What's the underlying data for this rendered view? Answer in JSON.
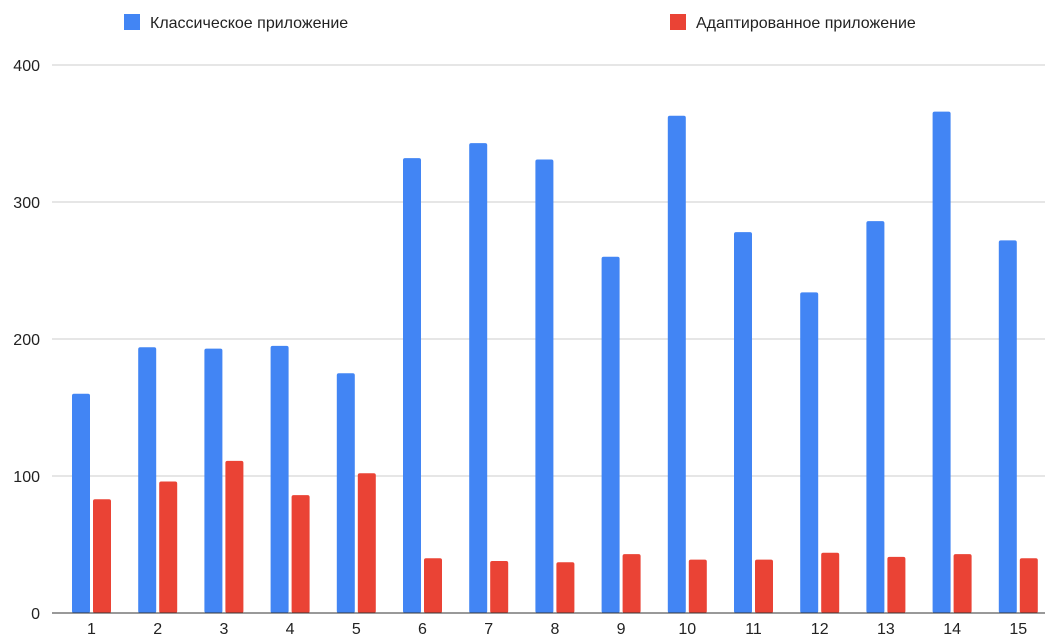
{
  "chart_data": {
    "type": "bar",
    "title": "",
    "xlabel": "",
    "ylabel": "",
    "categories": [
      "1",
      "2",
      "3",
      "4",
      "5",
      "6",
      "7",
      "8",
      "9",
      "10",
      "11",
      "12",
      "13",
      "14",
      "15"
    ],
    "series": [
      {
        "name": "Классическое приложение",
        "color": "#4285f4",
        "values": [
          160,
          194,
          193,
          195,
          175,
          332,
          343,
          331,
          260,
          363,
          278,
          234,
          286,
          366,
          272
        ]
      },
      {
        "name": "Адаптированное приложение",
        "color": "#ea4335",
        "values": [
          83,
          96,
          111,
          86,
          102,
          40,
          38,
          37,
          43,
          39,
          39,
          44,
          41,
          43,
          40
        ]
      }
    ],
    "ylim": [
      0,
      400
    ],
    "yticks": [
      "0",
      "100",
      "200",
      "300",
      "400"
    ],
    "grid": true,
    "legend_position": "top"
  }
}
